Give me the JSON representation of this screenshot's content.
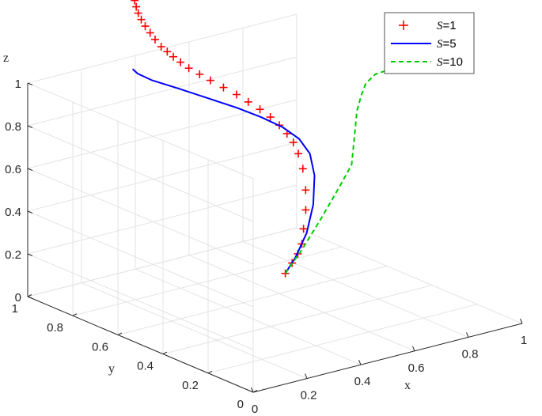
{
  "chart_data": {
    "type": "line3d",
    "axes": {
      "x": {
        "label": "x",
        "ticks": [
          "0",
          "0.2",
          "0.4",
          "0.6",
          "0.8",
          "1"
        ],
        "lim": [
          0,
          1
        ]
      },
      "y": {
        "label": "y",
        "ticks": [
          "0",
          "0.2",
          "0.4",
          "0.6",
          "0.8",
          "1"
        ],
        "lim": [
          0,
          1
        ]
      },
      "z": {
        "label": "z",
        "ticks": [
          "0",
          "0.2",
          "0.4",
          "0.6",
          "0.8",
          "1"
        ],
        "lim": [
          0,
          1
        ]
      }
    },
    "grid": true,
    "legend_placement": "top-right",
    "series": [
      {
        "name": "S=1",
        "name_var": "S",
        "name_eq": "=1",
        "color": "#ff0000",
        "style": "plus-markers",
        "points": [
          [
            0.22,
            0.12,
            0.432
          ],
          [
            0.262,
            0.14,
            0.458
          ],
          [
            0.3,
            0.16,
            0.48
          ],
          [
            0.34,
            0.19,
            0.5
          ],
          [
            0.38,
            0.23,
            0.54
          ],
          [
            0.43,
            0.28,
            0.59
          ],
          [
            0.48,
            0.34,
            0.64
          ],
          [
            0.52,
            0.4,
            0.7
          ],
          [
            0.545,
            0.45,
            0.74
          ],
          [
            0.56,
            0.49,
            0.77
          ],
          [
            0.57,
            0.53,
            0.79
          ],
          [
            0.575,
            0.57,
            0.81
          ],
          [
            0.575,
            0.61,
            0.83
          ],
          [
            0.57,
            0.65,
            0.85
          ],
          [
            0.56,
            0.69,
            0.87
          ],
          [
            0.55,
            0.73,
            0.89
          ],
          [
            0.535,
            0.77,
            0.91
          ],
          [
            0.52,
            0.81,
            0.93
          ],
          [
            0.505,
            0.84,
            0.95
          ],
          [
            0.49,
            0.87,
            0.97
          ],
          [
            0.48,
            0.895,
            0.99
          ],
          [
            0.47,
            0.915,
            1.01
          ],
          [
            0.46,
            0.93,
            1.03
          ],
          [
            0.45,
            0.945,
            1.05
          ],
          [
            0.44,
            0.96,
            1.08
          ],
          [
            0.43,
            0.97,
            1.11
          ],
          [
            0.42,
            0.98,
            1.14
          ],
          [
            0.412,
            0.988,
            1.17
          ],
          [
            0.405,
            0.993,
            1.2
          ],
          [
            0.4,
            0.996,
            1.23
          ],
          [
            0.396,
            0.998,
            1.26
          ],
          [
            0.393,
            0.999,
            1.29
          ],
          [
            0.39,
            1.0,
            1.32
          ],
          [
            0.388,
            1.0,
            1.35
          ],
          [
            0.386,
            1.0,
            1.38
          ],
          [
            0.385,
            1.0,
            1.41
          ],
          [
            0.384,
            1.0,
            1.44
          ],
          [
            0.383,
            1.0,
            1.47
          ],
          [
            0.382,
            1.0,
            1.5
          ],
          [
            0.381,
            1.0,
            1.53
          ],
          [
            0.38,
            1.0,
            1.56
          ],
          [
            0.38,
            1.0,
            1.59
          ]
        ]
      },
      {
        "name": "S=5",
        "name_var": "S",
        "name_eq": "=5",
        "color": "#0000ff",
        "style": "solid",
        "points": [
          [
            0.22,
            0.12,
            0.432
          ],
          [
            0.3,
            0.17,
            0.46
          ],
          [
            0.4,
            0.24,
            0.51
          ],
          [
            0.5,
            0.33,
            0.57
          ],
          [
            0.58,
            0.42,
            0.64
          ],
          [
            0.63,
            0.5,
            0.69
          ],
          [
            0.64,
            0.56,
            0.73
          ],
          [
            0.63,
            0.62,
            0.76
          ],
          [
            0.6,
            0.68,
            0.79
          ],
          [
            0.56,
            0.74,
            0.82
          ],
          [
            0.51,
            0.81,
            0.85
          ],
          [
            0.46,
            0.88,
            0.88
          ],
          [
            0.42,
            0.95,
            0.9
          ],
          [
            0.4,
            0.99,
            0.92
          ],
          [
            0.39,
            1.0,
            0.94
          ]
        ]
      },
      {
        "name": "S=10",
        "name_var": "S",
        "name_eq": "=10",
        "color": "#00cc00",
        "style": "dashed",
        "points": [
          [
            0.22,
            0.12,
            0.432
          ],
          [
            0.35,
            0.2,
            0.468
          ],
          [
            0.5,
            0.3,
            0.51
          ],
          [
            0.65,
            0.4,
            0.56
          ],
          [
            0.76,
            0.47,
            0.61
          ],
          [
            0.83,
            0.54,
            0.7
          ],
          [
            0.88,
            0.59,
            0.77
          ],
          [
            0.93,
            0.63,
            0.81
          ],
          [
            0.98,
            0.67,
            0.83
          ],
          [
            1.04,
            0.7,
            0.84
          ],
          [
            1.1,
            0.72,
            0.83
          ]
        ]
      }
    ]
  }
}
